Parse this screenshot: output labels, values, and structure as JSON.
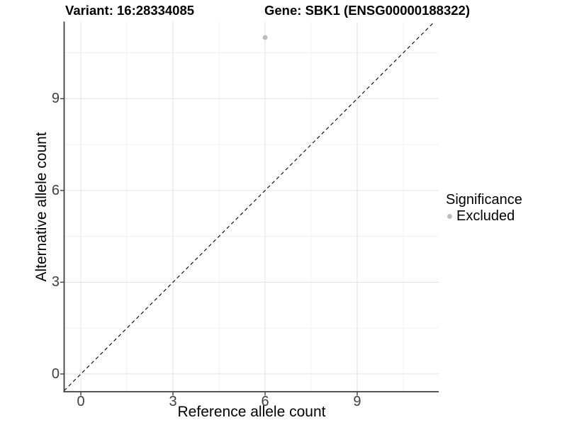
{
  "colors": {
    "background": "#ffffff",
    "point": "#bdbdbd",
    "grid_major": "#e4e4e4",
    "grid_minor": "#f1f1f1",
    "axis_line": "#3f3f3f",
    "tick_mark": "#3f3f3f",
    "tick_label": "#404040",
    "reference_line": "#000000"
  },
  "chart_data": {
    "type": "scatter",
    "titles": [
      "Variant: 16:28334085",
      "Gene: SBK1 (ENSG00000188322)"
    ],
    "xlabel": "Reference allele count",
    "ylabel": "Alternative allele count",
    "x_ticks": [
      0,
      3,
      6,
      9
    ],
    "y_ticks": [
      0,
      3,
      6,
      9
    ],
    "x_minor_ticks": [
      1.5,
      4.5,
      7.5,
      10.5
    ],
    "y_minor_ticks": [
      1.5,
      4.5,
      7.5,
      10.5
    ],
    "xlim": [
      -0.545,
      11.655
    ],
    "ylim": [
      -0.58,
      11.52
    ],
    "grid": "major+minor",
    "series": [
      {
        "name": "Excluded",
        "color": "#bdbdbd",
        "points": [
          {
            "x": 6,
            "y": 11
          }
        ]
      }
    ],
    "reference_line": {
      "kind": "identity",
      "slope": 1,
      "intercept": 0,
      "style": "dashed"
    },
    "legend": {
      "title": "Significance",
      "position": "right",
      "items": [
        {
          "label": "Excluded",
          "color": "#bdbdbd"
        }
      ]
    }
  }
}
